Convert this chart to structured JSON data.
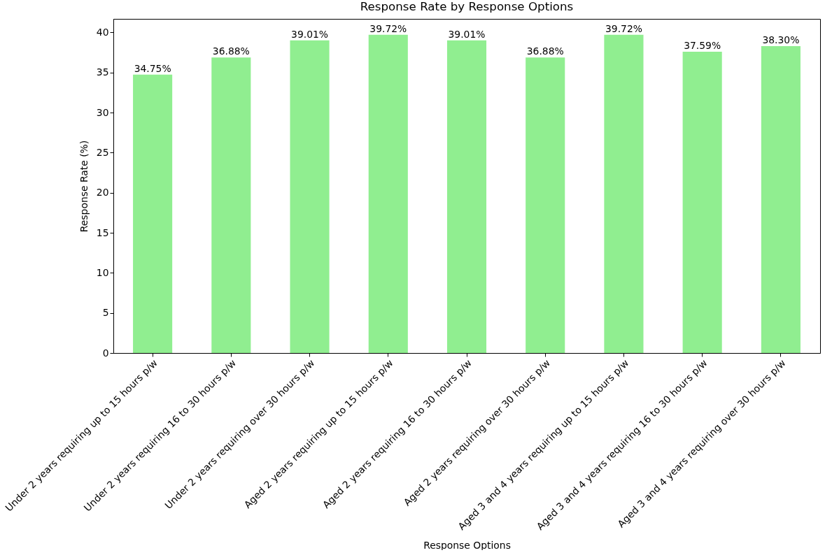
{
  "chart_data": {
    "type": "bar",
    "title": "Response Rate by Response Options",
    "xlabel": "Response Options",
    "ylabel": "Response Rate (%)",
    "categories": [
      "Under 2 years requiring up to 15 hours p/w",
      "Under 2 years requiring 16 to 30 hours p/w",
      "Under 2 years requiring over 30 hours p/w",
      "Aged 2 years requiring up to 15 hours p/w",
      "Aged 2 years requiring 16 to 30 hours p/w",
      "Aged 2 years requiring over 30 hours p/w",
      "Aged 3 and 4 years requiring up to 15 hours p/w",
      "Aged 3 and 4 years requiring 16 to 30 hours p/w",
      "Aged 3 and 4 years requiring over 30 hours p/w"
    ],
    "values": [
      34.75,
      36.88,
      39.01,
      39.72,
      39.01,
      36.88,
      39.72,
      37.59,
      38.3
    ],
    "value_labels": [
      "34.75%",
      "36.88%",
      "39.01%",
      "39.72%",
      "39.01%",
      "36.88%",
      "39.72%",
      "37.59%",
      "38.30%"
    ],
    "color": "#90ee90",
    "ylim": [
      0,
      41.7
    ],
    "yticks": [
      0,
      5,
      10,
      15,
      20,
      25,
      30,
      35,
      40
    ],
    "grid": false
  }
}
